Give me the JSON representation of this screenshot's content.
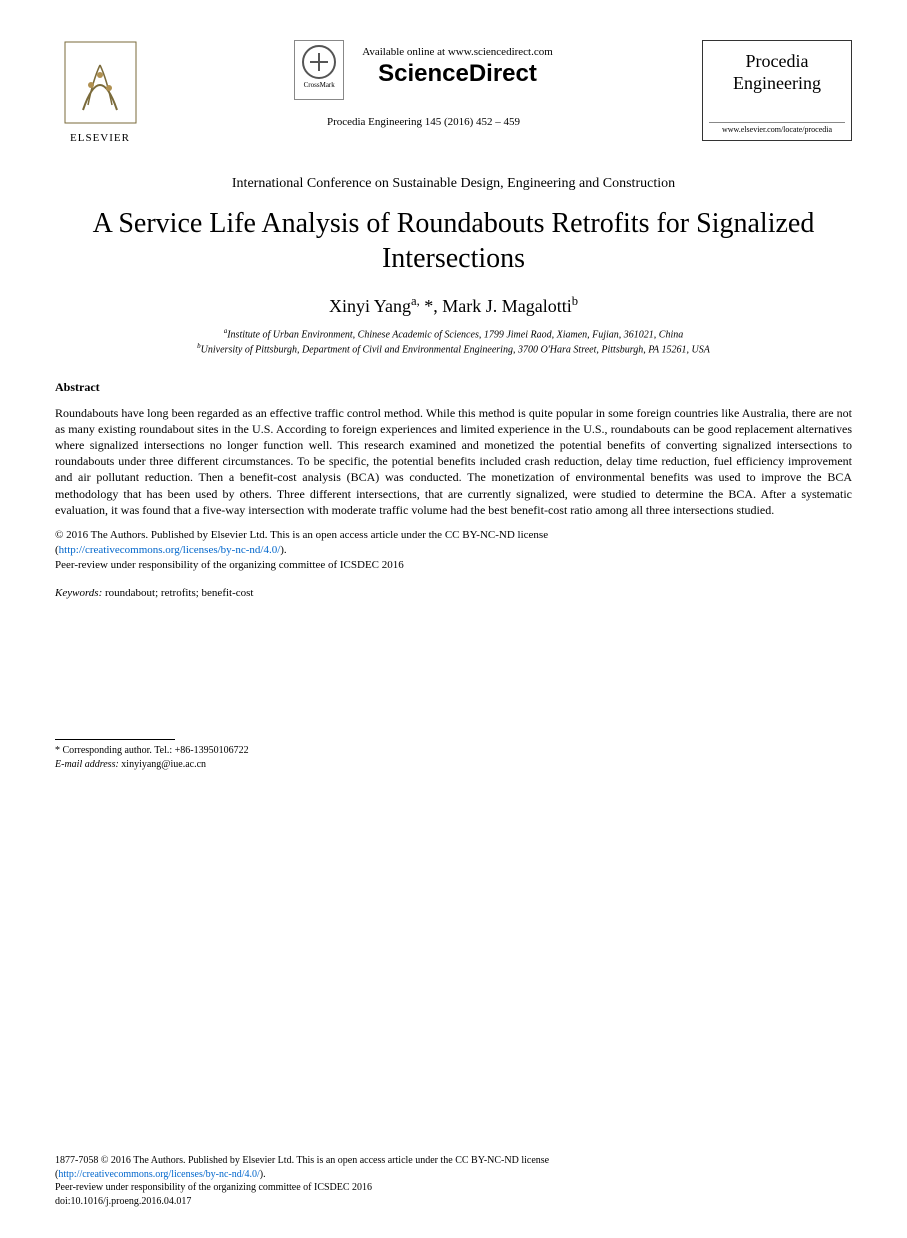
{
  "header": {
    "elsevier_label": "ELSEVIER",
    "crossmark_label": "CrossMark",
    "available_line": "Available online at www.sciencedirect.com",
    "sciencedirect": "ScienceDirect",
    "journal_ref": "Procedia Engineering 145 (2016) 452 – 459",
    "journal_name_1": "Procedia",
    "journal_name_2": "Engineering",
    "journal_url": "www.elsevier.com/locate/procedia"
  },
  "conference": "International Conference on Sustainable Design, Engineering and Construction",
  "title": "A Service Life Analysis of Roundabouts Retrofits for Signalized Intersections",
  "authors_html": "Xinyi Yang<sup>a,</sup> *, Mark J. Magalotti<sup>b</sup>",
  "affiliations": {
    "a": "Institute of Urban Environment, Chinese Academic of Sciences, 1799 Jimei Raod, Xiamen, Fujian, 361021, China",
    "b": "University of Pittsburgh, Department of Civil and Environmental Engineering, 3700 O'Hara Street, Pittsburgh, PA 15261, USA"
  },
  "abstract": {
    "heading": "Abstract",
    "p1": "Roundabouts have long been regarded as an effective traffic control method. While this method is quite popular in some foreign countries like Australia, there are not as many existing roundabout sites in the U.S. According to foreign experiences and limited experience in the U.S., roundabouts can be good replacement alternatives where signalized intersections no longer function well. This research examined and monetized the potential benefits of converting signalized intersections to roundabouts under three different circumstances. To be specific, the potential benefits included crash reduction, delay time reduction, fuel efficiency improvement and air pollutant reduction. Then a benefit-cost analysis (BCA) was conducted. The monetization of environmental benefits was used to improve the BCA methodology that has been used by others. Three different intersections, that are currently signalized, were studied to determine the BCA. After a systematic evaluation, it was found that a five-way intersection with moderate traffic volume had the best benefit-cost ratio among all three intersections studied."
  },
  "license": {
    "line1": "© 2016 The Authors. Published by Elsevier Ltd. This is an open access article under the CC BY-NC-ND license",
    "link_text": "http://creativecommons.org/licenses/by-nc-nd/4.0/",
    "line2_suffix": ").",
    "line3": "Peer-review under responsibility of the organizing committee of ICSDEC 2016"
  },
  "keywords": {
    "label": "Keywords:",
    "text": " roundabout; retrofits; benefit-cost"
  },
  "corresponding": {
    "line1": "* Corresponding author. Tel.: +86-13950106722",
    "email_label": "E-mail address:",
    "email": " xinyiyang@iue.ac.cn"
  },
  "footer": {
    "line1": "1877-7058 © 2016 The Authors. Published by Elsevier Ltd. This is an open access article under the CC BY-NC-ND license",
    "link_text": "http://creativecommons.org/licenses/by-nc-nd/4.0/",
    "line2_suffix": ").",
    "line3": "Peer-review under responsibility of the organizing committee of ICSDEC 2016",
    "doi": "doi:10.1016/j.proeng.2016.04.017"
  },
  "colors": {
    "text": "#000000",
    "link": "#0066cc",
    "background": "#ffffff",
    "border": "#333333"
  },
  "typography": {
    "body_family": "Times New Roman",
    "title_size_pt": 21,
    "author_size_pt": 14,
    "body_size_pt": 9,
    "small_size_pt": 8
  }
}
